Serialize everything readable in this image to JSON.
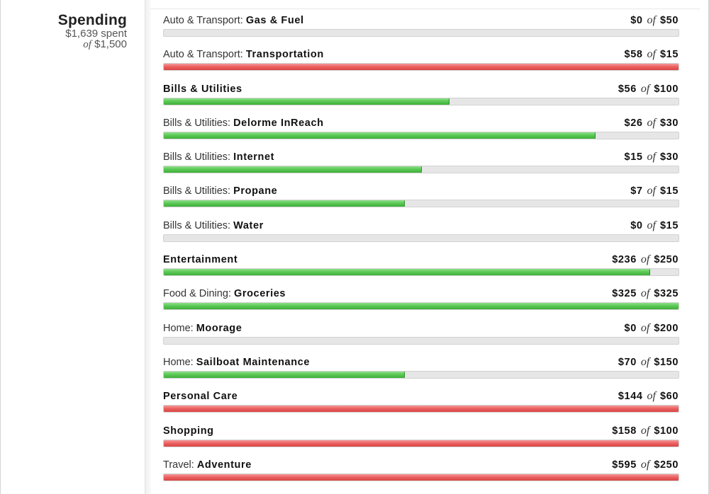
{
  "summary": {
    "title": "Spending",
    "spent": "$1,639 spent",
    "of_label": "of",
    "budget": "$1,500"
  },
  "colors": {
    "under_budget": "#5cc956",
    "over_budget": "#ec6262",
    "track": "#e6e6e6"
  },
  "budgets": [
    {
      "parent": "Auto & Transport:",
      "name": "Gas & Fuel",
      "spent": "$0",
      "of": "of",
      "budget": "$50",
      "progress": 0.0,
      "status": "ok"
    },
    {
      "parent": "Auto & Transport:",
      "name": "Transportation",
      "spent": "$58",
      "of": "of",
      "budget": "$15",
      "progress": 1.0,
      "status": "over"
    },
    {
      "parent": "",
      "name": "Bills & Utilities",
      "spent": "$56",
      "of": "of",
      "budget": "$100",
      "progress": 0.554,
      "status": "ok"
    },
    {
      "parent": "Bills & Utilities:",
      "name": "Delorme InReach",
      "spent": "$26",
      "of": "of",
      "budget": "$30",
      "progress": 0.838,
      "status": "ok"
    },
    {
      "parent": "Bills & Utilities:",
      "name": "Internet",
      "spent": "$15",
      "of": "of",
      "budget": "$30",
      "progress": 0.5,
      "status": "ok"
    },
    {
      "parent": "Bills & Utilities:",
      "name": "Propane",
      "spent": "$7",
      "of": "of",
      "budget": "$15",
      "progress": 0.467,
      "status": "ok"
    },
    {
      "parent": "Bills & Utilities:",
      "name": "Water",
      "spent": "$0",
      "of": "of",
      "budget": "$15",
      "progress": 0.0,
      "status": "ok"
    },
    {
      "parent": "",
      "name": "Entertainment",
      "spent": "$236",
      "of": "of",
      "budget": "$250",
      "progress": 0.944,
      "status": "ok"
    },
    {
      "parent": "Food & Dining:",
      "name": "Groceries",
      "spent": "$325",
      "of": "of",
      "budget": "$325",
      "progress": 1.0,
      "status": "ok"
    },
    {
      "parent": "Home:",
      "name": "Moorage",
      "spent": "$0",
      "of": "of",
      "budget": "$200",
      "progress": 0.0,
      "status": "ok"
    },
    {
      "parent": "Home:",
      "name": "Sailboat Maintenance",
      "spent": "$70",
      "of": "of",
      "budget": "$150",
      "progress": 0.467,
      "status": "ok"
    },
    {
      "parent": "",
      "name": "Personal Care",
      "spent": "$144",
      "of": "of",
      "budget": "$60",
      "progress": 1.0,
      "status": "over"
    },
    {
      "parent": "",
      "name": "Shopping",
      "spent": "$158",
      "of": "of",
      "budget": "$100",
      "progress": 1.0,
      "status": "over"
    },
    {
      "parent": "Travel:",
      "name": "Adventure",
      "spent": "$595",
      "of": "of",
      "budget": "$250",
      "progress": 1.0,
      "status": "over"
    }
  ]
}
